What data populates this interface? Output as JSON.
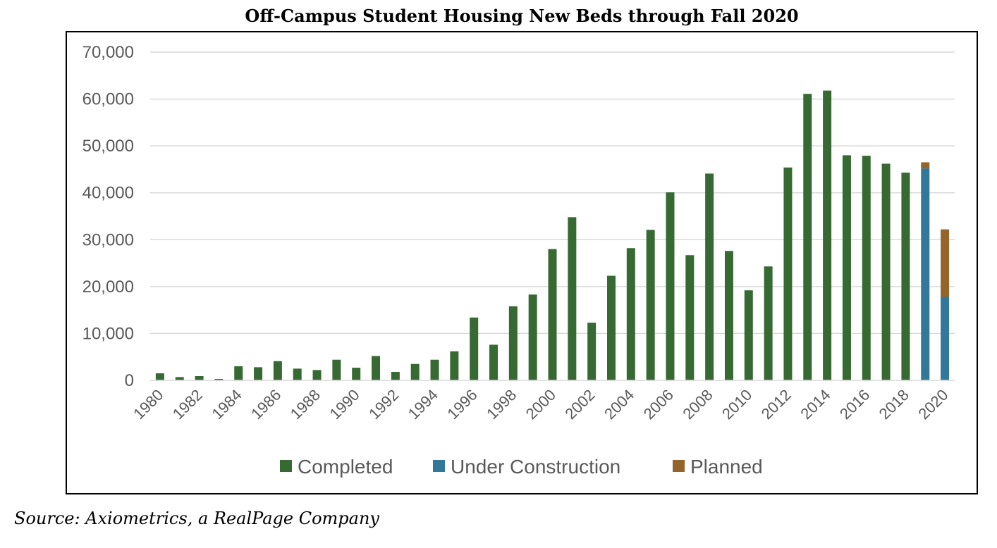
{
  "chart_data": {
    "type": "bar",
    "stacked": true,
    "title": "Off-Campus Student Housing New Beds through Fall 2020",
    "xlabel": "",
    "ylabel": "",
    "ylim": [
      0,
      70000
    ],
    "yticks": [
      0,
      10000,
      20000,
      30000,
      40000,
      50000,
      60000,
      70000
    ],
    "ytick_labels": [
      "0",
      "10,000",
      "20,000",
      "30,000",
      "40,000",
      "50,000",
      "60,000",
      "70,000"
    ],
    "categories": [
      1980,
      1981,
      1982,
      1983,
      1984,
      1985,
      1986,
      1987,
      1988,
      1989,
      1990,
      1991,
      1992,
      1993,
      1994,
      1995,
      1996,
      1997,
      1998,
      1999,
      2000,
      2001,
      2002,
      2003,
      2004,
      2005,
      2006,
      2007,
      2008,
      2009,
      2010,
      2011,
      2012,
      2013,
      2014,
      2015,
      2016,
      2017,
      2018,
      2019,
      2020
    ],
    "xtick_labels": [
      "1980",
      "1982",
      "1984",
      "1986",
      "1988",
      "1990",
      "1992",
      "1994",
      "1996",
      "1998",
      "2000",
      "2002",
      "2004",
      "2006",
      "2008",
      "2010",
      "2012",
      "2014",
      "2016",
      "2018",
      "2020"
    ],
    "grid": true,
    "legend_position": "bottom",
    "series": [
      {
        "name": "Completed",
        "color": "#376a32",
        "values": [
          1500,
          700,
          900,
          300,
          3000,
          2800,
          4100,
          2500,
          2200,
          4400,
          2700,
          5200,
          1800,
          3500,
          4400,
          6200,
          13400,
          7600,
          15800,
          18300,
          28000,
          34800,
          12300,
          22300,
          28200,
          32100,
          40100,
          26700,
          44100,
          27600,
          19200,
          24300,
          45400,
          61100,
          61800,
          48000,
          47900,
          46200,
          44300,
          0,
          0
        ]
      },
      {
        "name": "Under Construction",
        "color": "#31789a",
        "values": [
          0,
          0,
          0,
          0,
          0,
          0,
          0,
          0,
          0,
          0,
          0,
          0,
          0,
          0,
          0,
          0,
          0,
          0,
          0,
          0,
          0,
          0,
          0,
          0,
          0,
          0,
          0,
          0,
          0,
          0,
          0,
          0,
          0,
          0,
          0,
          0,
          0,
          0,
          0,
          45200,
          17800
        ]
      },
      {
        "name": "Planned",
        "color": "#93652a",
        "values": [
          0,
          0,
          0,
          0,
          0,
          0,
          0,
          0,
          0,
          0,
          0,
          0,
          0,
          0,
          0,
          0,
          0,
          0,
          0,
          0,
          0,
          0,
          0,
          0,
          0,
          0,
          0,
          0,
          0,
          0,
          0,
          0,
          0,
          0,
          0,
          0,
          0,
          0,
          0,
          1300,
          14400
        ]
      }
    ]
  },
  "source": "Source: Axiometrics, a RealPage Company"
}
